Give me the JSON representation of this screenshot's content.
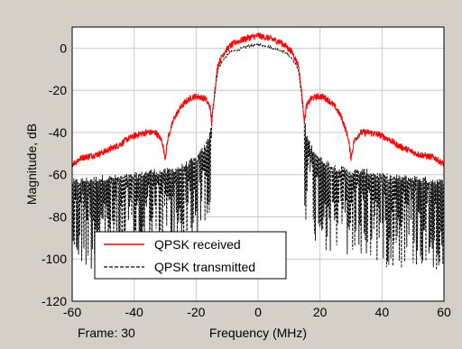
{
  "colors": {
    "figure_bg": "#d4d0c8",
    "axes_bg": "#ffffff",
    "grid": "#c8c8c8",
    "received": "#ff0000",
    "transmitted": "#000000"
  },
  "frame_label": "Frame: 30",
  "chart_data": {
    "type": "line",
    "title": "",
    "xlabel": "Frequency (MHz)",
    "ylabel": "Magnitude, dB",
    "xlim": [
      -60,
      60
    ],
    "ylim": [
      -120,
      10
    ],
    "xticks": [
      -60,
      -40,
      -20,
      0,
      20,
      40,
      60
    ],
    "yticks": [
      0,
      -20,
      -40,
      -60,
      -80,
      -100,
      -120
    ],
    "grid": true,
    "legend_position": "bottom-left",
    "series": [
      {
        "name": "QPSK received",
        "color": "#ff0000",
        "style": "solid",
        "x": [
          -60,
          -57,
          -54,
          -51,
          -48,
          -45,
          -42,
          -39,
          -36,
          -33,
          -31,
          -30,
          -29,
          -27,
          -25,
          -23,
          -21,
          -19,
          -17,
          -15.5,
          -15,
          -14,
          -13,
          -11,
          -9,
          -7,
          -5,
          -3,
          -1,
          0,
          1,
          3,
          5,
          7,
          9,
          11,
          13,
          14,
          15,
          15.5,
          17,
          19,
          21,
          23,
          25,
          27,
          29,
          30,
          31,
          33,
          36,
          39,
          42,
          45,
          48,
          51,
          54,
          57,
          60
        ],
        "y": [
          -55,
          -52,
          -51,
          -50,
          -48,
          -46,
          -43,
          -41,
          -40,
          -40,
          -44,
          -52,
          -42,
          -33,
          -28,
          -25,
          -23,
          -23,
          -24,
          -28,
          -35,
          -20,
          -8,
          -2,
          1,
          3,
          4,
          5,
          5.5,
          6,
          5.5,
          5,
          4,
          3,
          1,
          -2,
          -8,
          -20,
          -35,
          -28,
          -24,
          -23,
          -23,
          -25,
          -28,
          -33,
          -42,
          -52,
          -44,
          -40,
          -40,
          -41,
          -43,
          -46,
          -48,
          -50,
          -51,
          -52,
          -55
        ]
      },
      {
        "name": "QPSK transmitted",
        "color": "#000000",
        "style": "dashed",
        "x": [
          -60,
          -55,
          -50,
          -45,
          -40,
          -35,
          -30,
          -25,
          -20,
          -17,
          -15.5,
          -15,
          -14,
          -13,
          -11,
          -9,
          -7,
          -5,
          -3,
          -1,
          0,
          1,
          3,
          5,
          7,
          9,
          11,
          13,
          14,
          15,
          15.5,
          17,
          20,
          25,
          30,
          35,
          40,
          45,
          50,
          55,
          60
        ],
        "y": [
          -65,
          -64,
          -63,
          -63,
          -62,
          -60,
          -60,
          -58,
          -54,
          -48,
          -42,
          -35,
          -22,
          -10,
          -5,
          -2,
          -1,
          0,
          1,
          1.5,
          2,
          1.5,
          1,
          0,
          -1,
          -2,
          -5,
          -10,
          -22,
          -35,
          -42,
          -48,
          -54,
          -58,
          -60,
          -60,
          -62,
          -63,
          -63,
          -64,
          -65
        ]
      }
    ]
  }
}
